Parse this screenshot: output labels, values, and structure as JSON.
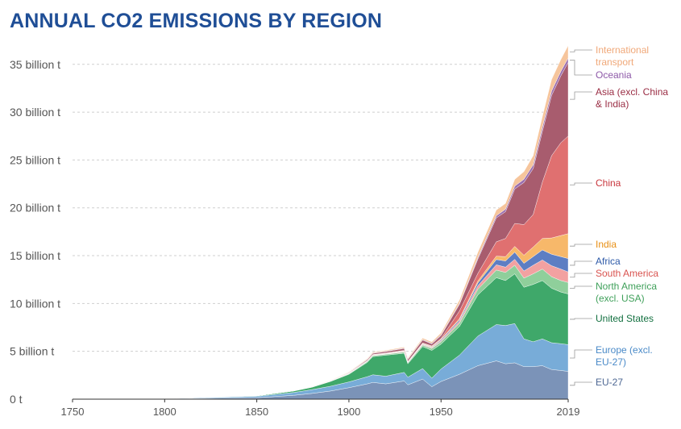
{
  "chart_data": {
    "type": "area",
    "title": "ANNUAL CO2 EMISSIONS BY REGION",
    "x_ticks": [
      "1750",
      "1800",
      "1850",
      "1900",
      "1950",
      "2019"
    ],
    "y_ticks": [
      "0 t",
      "5 billion t",
      "10 billion t",
      "15 billion t",
      "20 billion t",
      "25 billion t",
      "30 billion t",
      "35 billion t"
    ],
    "ylim": [
      0,
      36.5
    ],
    "xlim": [
      1750,
      2019
    ],
    "grid": "horizontal dashed",
    "x": [
      1750,
      1800,
      1850,
      1870,
      1880,
      1890,
      1900,
      1910,
      1913,
      1920,
      1930,
      1932,
      1940,
      1945,
      1950,
      1960,
      1970,
      1980,
      1985,
      1990,
      1995,
      2000,
      2005,
      2010,
      2015,
      2019
    ],
    "series": [
      {
        "name": "EU-27",
        "color": "#7b93b8",
        "values": [
          0.009,
          0.03,
          0.15,
          0.4,
          0.6,
          0.85,
          1.2,
          1.6,
          1.75,
          1.6,
          1.9,
          1.5,
          2.1,
          1.3,
          1.85,
          2.6,
          3.5,
          4.0,
          3.7,
          3.8,
          3.4,
          3.4,
          3.5,
          3.1,
          3.0,
          2.9
        ]
      },
      {
        "name": "Europe (excl. EU-27)",
        "color": "#78acd8",
        "values": [
          0.0,
          0.02,
          0.15,
          0.3,
          0.4,
          0.5,
          0.6,
          0.75,
          0.8,
          0.8,
          0.9,
          0.8,
          1.1,
          0.9,
          1.3,
          2.0,
          3.1,
          3.8,
          4.0,
          4.1,
          2.9,
          2.6,
          2.8,
          2.8,
          2.8,
          2.8
        ]
      },
      {
        "name": "United States",
        "color": "#3fa86a",
        "values": [
          0.0,
          0.001,
          0.05,
          0.15,
          0.25,
          0.5,
          0.8,
          1.5,
          1.9,
          2.2,
          2.0,
          1.4,
          2.3,
          2.9,
          2.6,
          3.0,
          4.3,
          4.9,
          4.7,
          5.2,
          5.4,
          6.0,
          6.1,
          5.7,
          5.4,
          5.3
        ]
      },
      {
        "name": "North America (excl. USA)",
        "color": "#8fcf9b",
        "values": [
          0.0,
          0.0,
          0.005,
          0.01,
          0.02,
          0.03,
          0.05,
          0.09,
          0.1,
          0.1,
          0.12,
          0.1,
          0.15,
          0.2,
          0.25,
          0.35,
          0.6,
          0.8,
          0.85,
          0.9,
          0.95,
          1.1,
          1.2,
          1.2,
          1.2,
          1.2
        ]
      },
      {
        "name": "South America",
        "color": "#f2a1a1",
        "values": [
          0.0,
          0.0,
          0.0,
          0.005,
          0.01,
          0.015,
          0.02,
          0.03,
          0.04,
          0.04,
          0.06,
          0.05,
          0.07,
          0.08,
          0.1,
          0.2,
          0.35,
          0.55,
          0.55,
          0.62,
          0.75,
          0.9,
          0.95,
          1.15,
          1.2,
          1.1
        ]
      },
      {
        "name": "Africa",
        "color": "#5d7ec3",
        "values": [
          0.0,
          0.0,
          0.0,
          0.003,
          0.005,
          0.008,
          0.015,
          0.02,
          0.025,
          0.03,
          0.04,
          0.035,
          0.05,
          0.06,
          0.1,
          0.15,
          0.3,
          0.55,
          0.65,
          0.75,
          0.8,
          0.9,
          1.05,
          1.2,
          1.3,
          1.4
        ]
      },
      {
        "name": "India",
        "color": "#f7b86a",
        "values": [
          0.0,
          0.0,
          0.0,
          0.003,
          0.005,
          0.01,
          0.02,
          0.03,
          0.035,
          0.04,
          0.05,
          0.04,
          0.06,
          0.07,
          0.07,
          0.12,
          0.2,
          0.35,
          0.45,
          0.6,
          0.85,
          1.0,
          1.2,
          1.7,
          2.2,
          2.6
        ]
      },
      {
        "name": "China",
        "color": "#e07070",
        "values": [
          0.0,
          0.0,
          0.0,
          0.0,
          0.0,
          0.005,
          0.01,
          0.015,
          0.02,
          0.02,
          0.03,
          0.03,
          0.05,
          0.06,
          0.08,
          0.8,
          0.8,
          1.5,
          1.9,
          2.4,
          3.2,
          3.4,
          5.9,
          8.6,
          9.7,
          10.2
        ]
      },
      {
        "name": "Asia (excl. China & India)",
        "color": "#a85c6e",
        "values": [
          0.0,
          0.0,
          0.0,
          0.005,
          0.01,
          0.02,
          0.05,
          0.1,
          0.12,
          0.15,
          0.2,
          0.2,
          0.3,
          0.2,
          0.3,
          0.7,
          1.5,
          2.5,
          2.8,
          3.6,
          4.4,
          4.8,
          5.3,
          6.3,
          7.0,
          7.7
        ]
      },
      {
        "name": "Oceania",
        "color": "#9a6fb0",
        "values": [
          0.0,
          0.0,
          0.0,
          0.005,
          0.01,
          0.015,
          0.03,
          0.04,
          0.05,
          0.05,
          0.05,
          0.05,
          0.06,
          0.07,
          0.08,
          0.1,
          0.16,
          0.22,
          0.26,
          0.3,
          0.34,
          0.4,
          0.44,
          0.46,
          0.45,
          0.46
        ]
      },
      {
        "name": "International transport",
        "color": "#f6c59c",
        "values": [
          0.0,
          0.0,
          0.0,
          0.01,
          0.02,
          0.03,
          0.05,
          0.07,
          0.08,
          0.08,
          0.1,
          0.1,
          0.15,
          0.15,
          0.2,
          0.35,
          0.55,
          0.6,
          0.6,
          0.7,
          0.8,
          0.95,
          1.1,
          1.2,
          1.25,
          1.3
        ]
      }
    ],
    "labels": [
      {
        "series": "International transport",
        "lines": [
          "International",
          "transport"
        ],
        "color": "#f0a879"
      },
      {
        "series": "Oceania",
        "lines": [
          "Oceania"
        ],
        "color": "#8e59a8"
      },
      {
        "series": "Asia (excl. China & India)",
        "lines": [
          "Asia (excl. China",
          "& India)"
        ],
        "color": "#9a2d44"
      },
      {
        "series": "China",
        "lines": [
          "China"
        ],
        "color": "#c8363d"
      },
      {
        "series": "India",
        "lines": [
          "India"
        ],
        "color": "#e88f14"
      },
      {
        "series": "Africa",
        "lines": [
          "Africa"
        ],
        "color": "#2e5aa8"
      },
      {
        "series": "South America",
        "lines": [
          "South America"
        ],
        "color": "#d9534f"
      },
      {
        "series": "North America (excl. USA)",
        "lines": [
          "North America",
          "(excl. USA)"
        ],
        "color": "#3fa05a"
      },
      {
        "series": "United States",
        "lines": [
          "United States"
        ],
        "color": "#137040"
      },
      {
        "series": "Europe (excl. EU-27)",
        "lines": [
          "Europe (excl.",
          "EU-27)"
        ],
        "color": "#4a8ac8"
      },
      {
        "series": "EU-27",
        "lines": [
          "EU-27"
        ],
        "color": "#4d6793"
      }
    ]
  }
}
